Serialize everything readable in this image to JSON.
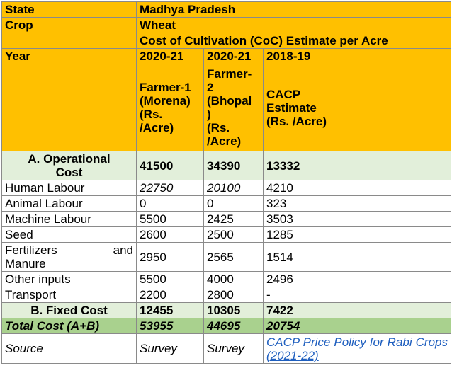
{
  "rows": {
    "state": {
      "label": "State",
      "value": "Madhya Pradesh"
    },
    "crop": {
      "label": "Crop",
      "value": "Wheat"
    },
    "coc_title": "Cost of Cultivation (CoC) Estimate per Acre",
    "year": {
      "label": "Year",
      "y1": "2020-21",
      "y2": "2020-21",
      "y3": "2018-19"
    },
    "col_desc": {
      "c1": [
        "Farmer-1",
        "(Morena)",
        "(Rs.",
        "/Acre)"
      ],
      "c2": [
        "Farmer-",
        "2",
        "(Bhopal",
        ")",
        "(Rs.",
        "/Acre)"
      ],
      "c3": [
        "CACP",
        "Estimate",
        "(Rs. /Acre)"
      ]
    }
  },
  "table": {
    "operational": {
      "label_line1": "A. Operational",
      "label_line2": "Cost",
      "v1": "41500",
      "v2": "34390",
      "v3": "13332"
    },
    "items": [
      {
        "label": "Human Labour",
        "v1": "22750",
        "v2": "20100",
        "v3": "4210"
      },
      {
        "label": "Animal Labour",
        "v1": "0",
        "v2": "0",
        "v3": "323"
      },
      {
        "label": "Machine Labour",
        "v1": "5500",
        "v2": "2425",
        "v3": "3503"
      },
      {
        "label": "Seed",
        "v1": "2600",
        "v2": "2500",
        "v3": "1285"
      }
    ],
    "fertilizers": {
      "label_a": "Fertilizers",
      "label_b": "and",
      "label_c": "Manure",
      "v1": "2950",
      "v2": "2565",
      "v3": "1514"
    },
    "items2": [
      {
        "label": "Other inputs",
        "v1": "5500",
        "v2": "4000",
        "v3": "2496"
      },
      {
        "label": "Transport",
        "v1": "2200",
        "v2": "2800",
        "v3": "-"
      }
    ],
    "fixed": {
      "label": "B. Fixed Cost",
      "v1": "12455",
      "v2": "10305",
      "v3": "7422"
    },
    "total": {
      "label": "Total Cost (A+B)",
      "v1": "53955",
      "v2": "44695",
      "v3": "20754"
    },
    "source": {
      "label": "Source",
      "v1": "Survey",
      "v2": "Survey",
      "v3": "CACP Price Policy for Rabi Crops (2021-22)"
    }
  },
  "colors": {
    "header": "#ffc000",
    "light_green": "#e2efda",
    "green": "#a9d18e",
    "link": "#1f5fbf"
  }
}
